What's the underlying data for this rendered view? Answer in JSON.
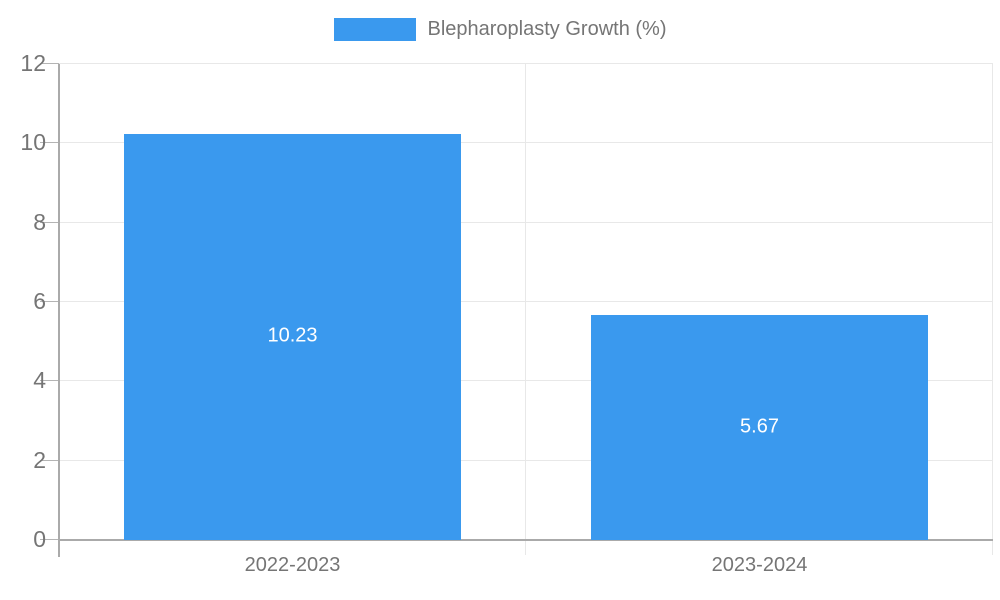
{
  "legend": {
    "label": "Blepharoplasty Growth (%)"
  },
  "colors": {
    "bar": "#3a99ee",
    "grid": "#e8e8e8",
    "axis": "#aaaaaa",
    "tick": "#b4b4b4",
    "text": "#757575",
    "bar_label_text": "#ffffff",
    "background": "#ffffff"
  },
  "chart_data": {
    "type": "bar",
    "title": "",
    "categories": [
      "2022-2023",
      "2023-2024"
    ],
    "series": [
      {
        "name": "Blepharoplasty Growth (%)",
        "color": "#3a99ee",
        "values": [
          10.23,
          5.67
        ]
      }
    ],
    "bar_value_labels": [
      "10.23",
      "5.67"
    ],
    "xlabel": "",
    "ylabel": "",
    "ylim": [
      0,
      12
    ],
    "yticks": [
      0,
      2,
      4,
      6,
      8,
      10,
      12
    ],
    "grid": true,
    "legend_position": "top",
    "bar_width_fraction": 0.72
  }
}
